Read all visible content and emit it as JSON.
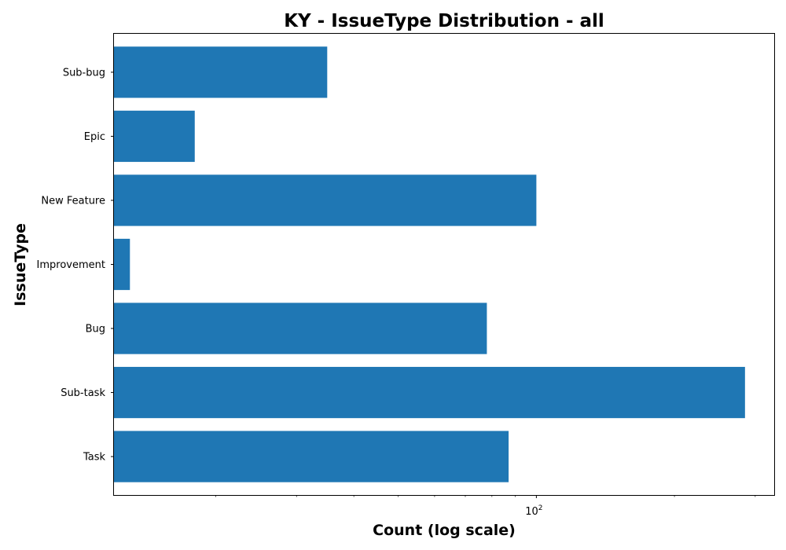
{
  "chart_data": {
    "type": "bar",
    "orientation": "horizontal",
    "title": "KY - IssueType Distribution - all",
    "xlabel": "Count (log scale)",
    "ylabel": "IssueType",
    "x_scale": "log",
    "x_tick_labels": [
      {
        "value": 100,
        "label": "10",
        "exponent": "2"
      }
    ],
    "xlim": [
      12,
      330
    ],
    "categories": [
      "Task",
      "Sub-task",
      "Bug",
      "Improvement",
      "New Feature",
      "Epic",
      "Sub-bug"
    ],
    "values": [
      87,
      285,
      78,
      13,
      100,
      18,
      35
    ],
    "bar_color": "#1f77b4",
    "grid": false
  }
}
